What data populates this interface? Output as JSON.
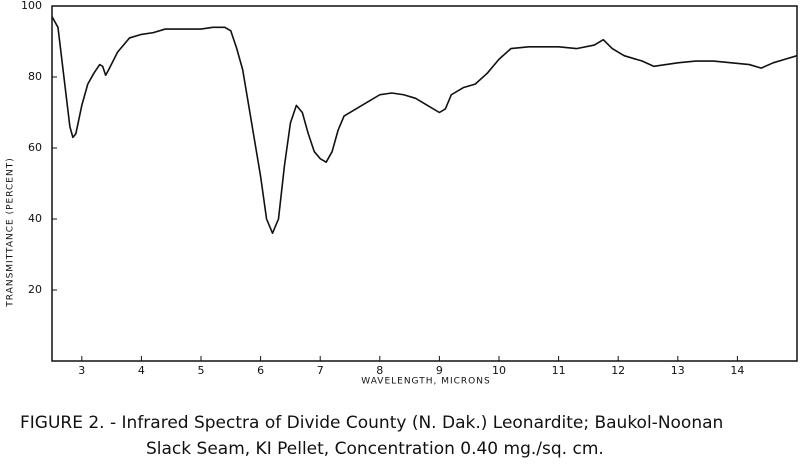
{
  "chart_data": {
    "type": "line",
    "x_label": "WAVELENGTH, MICRONS",
    "y_label": "TRANSMITTANCE (PERCENT)",
    "caption": [
      "FIGURE 2. - Infrared Spectra of Divide County (N. Dak.) Leonardite; Baukol-Noonan",
      "Slack Seam, KI Pellet, Concentration 0.40 mg./sq. cm."
    ],
    "x": [
      2.5,
      2.6,
      2.7,
      2.8,
      2.85,
      2.9,
      3.0,
      3.1,
      3.2,
      3.3,
      3.35,
      3.4,
      3.45,
      3.6,
      3.8,
      4.0,
      4.2,
      4.4,
      4.6,
      4.8,
      5.0,
      5.2,
      5.4,
      5.5,
      5.6,
      5.7,
      5.8,
      5.9,
      6.0,
      6.1,
      6.2,
      6.3,
      6.4,
      6.5,
      6.6,
      6.7,
      6.8,
      6.9,
      7.0,
      7.1,
      7.2,
      7.3,
      7.4,
      7.6,
      7.8,
      8.0,
      8.2,
      8.4,
      8.6,
      8.8,
      9.0,
      9.1,
      9.2,
      9.4,
      9.6,
      9.8,
      10.0,
      10.2,
      10.5,
      10.8,
      11.0,
      11.3,
      11.6,
      11.75,
      11.9,
      12.1,
      12.4,
      12.6,
      12.8,
      13.0,
      13.3,
      13.6,
      13.9,
      14.2,
      14.4,
      14.6,
      14.8,
      15.0
    ],
    "values": [
      97,
      94,
      80,
      66,
      63,
      64,
      72,
      78,
      81,
      83.5,
      83,
      80.5,
      82,
      87,
      91,
      92,
      92.5,
      93.5,
      93.5,
      93.5,
      93.5,
      94,
      94,
      93,
      88,
      82,
      72,
      62,
      52,
      40,
      36,
      40,
      55,
      67,
      72,
      70,
      64,
      59,
      57,
      56,
      59,
      65,
      69,
      71,
      73,
      75,
      75.5,
      75,
      74,
      72,
      70,
      71,
      75,
      77,
      78,
      81,
      85,
      88,
      88.5,
      88.5,
      88.5,
      88,
      89,
      90.5,
      88,
      86,
      84.5,
      83,
      83.5,
      84,
      84.5,
      84.5,
      84,
      83.5,
      82.5,
      84,
      85,
      86
    ],
    "color": "#111111",
    "xlim": [
      2.5,
      15
    ],
    "xticks": [
      3,
      4,
      5,
      6,
      7,
      8,
      9,
      10,
      11,
      12,
      13,
      14
    ],
    "ylim": [
      0,
      100
    ],
    "yticks": [
      20,
      40,
      60,
      80,
      100
    ]
  }
}
